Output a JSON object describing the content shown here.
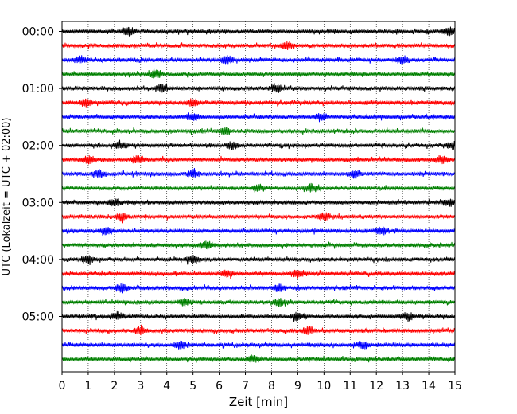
{
  "chart_data": {
    "type": "line",
    "title": "",
    "xlabel": "Zeit  [min]",
    "ylabel": "UTC (Lokalzeit = UTC + 02:00)",
    "xlim": [
      0,
      15
    ],
    "x_ticks": [
      0,
      1,
      2,
      3,
      4,
      5,
      6,
      7,
      8,
      9,
      10,
      11,
      12,
      13,
      14,
      15
    ],
    "y_tick_labels": [
      "00:00",
      "01:00",
      "02:00",
      "03:00",
      "04:00",
      "05:00"
    ],
    "y_tick_rows": [
      0,
      4,
      8,
      12,
      16,
      20
    ],
    "grid": "vertical dotted lines at each minute",
    "trace_count": 24,
    "trace_interval_minutes": 15,
    "color_cycle": [
      "#000000",
      "#ff0000",
      "#0000ff",
      "#008000"
    ],
    "traces": [
      {
        "start": "00:00",
        "color": "#000000",
        "events_min": [
          2.5,
          14.8
        ]
      },
      {
        "start": "00:15",
        "color": "#ff0000",
        "events_min": [
          8.6
        ]
      },
      {
        "start": "00:30",
        "color": "#0000ff",
        "events_min": [
          0.7,
          6.3,
          13.0
        ]
      },
      {
        "start": "00:45",
        "color": "#008000",
        "events_min": [
          3.6
        ]
      },
      {
        "start": "01:00",
        "color": "#000000",
        "events_min": [
          3.8,
          8.2
        ]
      },
      {
        "start": "01:15",
        "color": "#ff0000",
        "events_min": [
          0.9,
          5.0
        ]
      },
      {
        "start": "01:30",
        "color": "#0000ff",
        "events_min": [
          5.0,
          9.9
        ]
      },
      {
        "start": "01:45",
        "color": "#008000",
        "events_min": [
          6.2
        ]
      },
      {
        "start": "02:00",
        "color": "#000000",
        "events_min": [
          2.2,
          6.5,
          14.9
        ]
      },
      {
        "start": "02:15",
        "color": "#ff0000",
        "events_min": [
          1.0,
          2.9,
          14.5
        ]
      },
      {
        "start": "02:30",
        "color": "#0000ff",
        "events_min": [
          1.4,
          5.0,
          11.2
        ]
      },
      {
        "start": "02:45",
        "color": "#008000",
        "events_min": [
          7.5,
          9.5
        ]
      },
      {
        "start": "03:00",
        "color": "#000000",
        "events_min": [
          2.0,
          14.8
        ]
      },
      {
        "start": "03:15",
        "color": "#ff0000",
        "events_min": [
          2.3,
          10.0
        ]
      },
      {
        "start": "03:30",
        "color": "#0000ff",
        "events_min": [
          1.7,
          12.2
        ]
      },
      {
        "start": "03:45",
        "color": "#008000",
        "events_min": [
          5.5
        ]
      },
      {
        "start": "04:00",
        "color": "#000000",
        "events_min": [
          1.0,
          5.0
        ]
      },
      {
        "start": "04:15",
        "color": "#ff0000",
        "events_min": [
          6.3,
          9.0
        ]
      },
      {
        "start": "04:30",
        "color": "#0000ff",
        "events_min": [
          2.3,
          8.3
        ]
      },
      {
        "start": "04:45",
        "color": "#008000",
        "events_min": [
          4.7,
          8.3
        ]
      },
      {
        "start": "05:00",
        "color": "#000000",
        "events_min": [
          2.1,
          9.0,
          13.2
        ]
      },
      {
        "start": "05:15",
        "color": "#ff0000",
        "events_min": [
          3.0,
          9.4
        ]
      },
      {
        "start": "05:30",
        "color": "#0000ff",
        "events_min": [
          4.5,
          11.5
        ]
      },
      {
        "start": "05:45",
        "color": "#008000",
        "events_min": [
          7.3
        ]
      }
    ]
  }
}
